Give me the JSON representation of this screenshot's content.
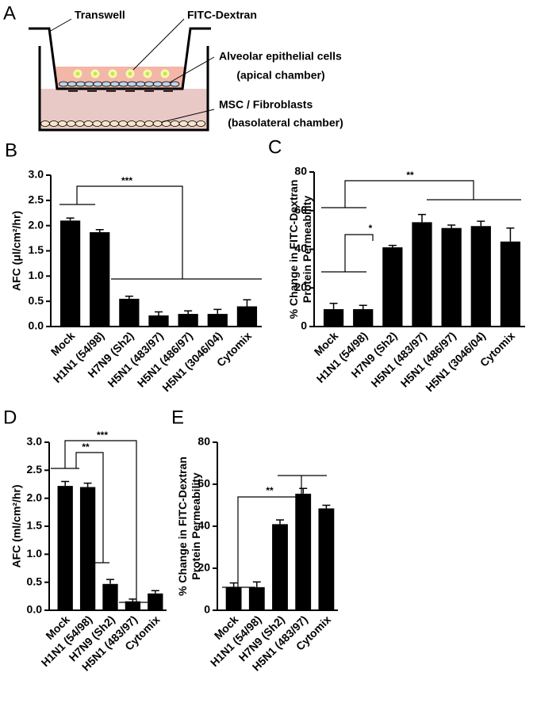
{
  "diagram": {
    "panel_label": "A",
    "labels": [
      "Transwell",
      "FITC-Dextran",
      "Alveolar epithelial cells",
      "(apical chamber)",
      "MSC / Fibroblasts",
      "(basolateral chamber)"
    ]
  },
  "chart_data": [
    {
      "type": "bar",
      "panel_label": "B",
      "ylabel": [
        "AFC (μl/cm²/hr)"
      ],
      "categories": [
        "Mock",
        "H1N1 (54/98)",
        "H7N9 (Sh2)",
        "H5N1 (483/97)",
        "H5N1 (486/97)",
        "H5N1 (3046/04)",
        "Cytomix"
      ],
      "values": [
        2.1,
        1.87,
        0.55,
        0.22,
        0.25,
        0.25,
        0.4
      ],
      "errors": [
        0.05,
        0.05,
        0.05,
        0.07,
        0.06,
        0.09,
        0.13
      ],
      "color": "#000000",
      "ylim": [
        0,
        3
      ],
      "yticks": [
        {
          "value": 0,
          "label": "0.0"
        },
        {
          "value": 0.5,
          "label": "0.5"
        },
        {
          "value": 1,
          "label": "1.0"
        },
        {
          "value": 1.5,
          "label": "1.5"
        },
        {
          "value": 2,
          "label": "2.0"
        },
        {
          "value": 2.5,
          "label": "2.5"
        },
        {
          "value": 3,
          "label": "3.0"
        }
      ],
      "annotations": [
        "***"
      ]
    },
    {
      "type": "bar",
      "panel_label": "C",
      "ylabel": [
        "% Change in FITC-Dextran",
        "Protein Permeability"
      ],
      "categories": [
        "Mock",
        "H1N1 (54/98)",
        "H7N9 (Sh2)",
        "H5N1 (483/97)",
        "H5N1 (486/97)",
        "H5N1 (3046/04)",
        "Cytomix"
      ],
      "values": [
        9,
        9,
        41,
        54,
        51,
        52,
        44
      ],
      "errors": [
        3,
        2,
        1,
        4,
        1.5,
        2.5,
        7
      ],
      "color": "#000000",
      "ylim": [
        0,
        80
      ],
      "yticks": [
        0,
        20,
        40,
        60,
        80
      ],
      "annotations": [
        "**",
        "*"
      ]
    },
    {
      "type": "bar",
      "panel_label": "D",
      "ylabel": [
        "AFC (ml/cm²/hr)"
      ],
      "categories": [
        "Mock",
        "H1N1 (54/98)",
        "H7N9 (Sh2)",
        "H5N1 (483/97)",
        "Cytomix"
      ],
      "values": [
        2.22,
        2.2,
        0.47,
        0.16,
        0.3
      ],
      "errors": [
        0.08,
        0.07,
        0.08,
        0.04,
        0.05
      ],
      "color": "#000000",
      "ylim": [
        0,
        3
      ],
      "yticks": [
        {
          "value": 0,
          "label": "0.0"
        },
        {
          "value": 0.5,
          "label": "0.5"
        },
        {
          "value": 1,
          "label": "1.0"
        },
        {
          "value": 1.5,
          "label": "1.5"
        },
        {
          "value": 2,
          "label": "2.0"
        },
        {
          "value": 2.5,
          "label": "2.5"
        },
        {
          "value": 3,
          "label": "3.0"
        }
      ],
      "annotations": [
        "***",
        "**"
      ]
    },
    {
      "type": "bar",
      "panel_label": "E",
      "ylabel": [
        "% Change in FITC-Dextran",
        "Protein Permeability"
      ],
      "categories": [
        "Mock",
        "H1N1 (54/98)",
        "H7N9 (Sh2)",
        "H5N1 (483/97)",
        "Cytomix"
      ],
      "values": [
        11,
        11,
        41,
        55.5,
        48.5
      ],
      "errors": [
        2,
        2.5,
        2,
        2.5,
        1.5
      ],
      "color": "#000000",
      "ylim": [
        0,
        80
      ],
      "yticks": [
        0,
        20,
        40,
        60,
        80
      ],
      "annotations": [
        "**"
      ]
    }
  ]
}
